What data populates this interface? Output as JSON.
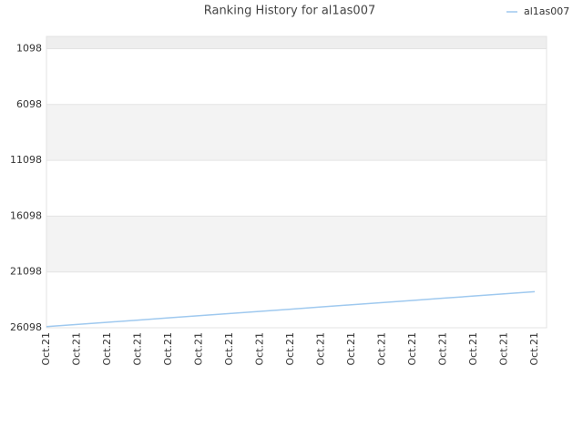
{
  "chart_data": {
    "type": "line",
    "title": "Ranking History for al1as007",
    "categories": [
      "Oct.21",
      "Oct.21",
      "Oct.21",
      "Oct.21",
      "Oct.21",
      "Oct.21",
      "Oct.21",
      "Oct.21",
      "Oct.21",
      "Oct.21",
      "Oct.21",
      "Oct.21",
      "Oct.21",
      "Oct.21",
      "Oct.21",
      "Oct.21",
      "Oct.21"
    ],
    "series": [
      {
        "name": "al1as007",
        "color": "#9fc9ef",
        "values": [
          26000,
          25804,
          25608,
          25412,
          25216,
          25020,
          24824,
          24628,
          24432,
          24236,
          24040,
          23844,
          23648,
          23452,
          23256,
          23060,
          22864
        ]
      }
    ],
    "ylim": [
      26098,
      0
    ],
    "yticks": [
      1098,
      6098,
      11098,
      16098,
      21098,
      26098
    ],
    "grid": true,
    "legend": "top-right"
  }
}
